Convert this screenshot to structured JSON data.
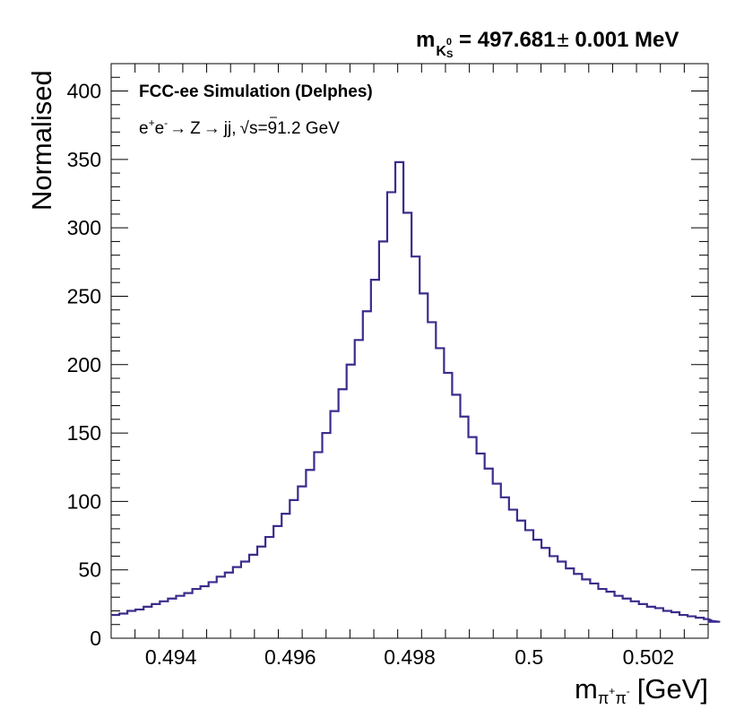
{
  "chart_data": {
    "type": "histogram",
    "title": {
      "mass_symbol": "m",
      "particle": "K",
      "particle_sup": "0",
      "particle_sub": "S",
      "value_text": " = 497.681",
      "pm": "±",
      "error_text": " 0.001 MeV"
    },
    "experiment_label": "FCC-ee Simulation (Delphes)",
    "process_label": {
      "e1": "e",
      "e1_sup": "+",
      "e2": "e",
      "e2_sup": "-",
      "arrow1": "→",
      "z": "Z",
      "arrow2": "→",
      "jets": "jj,",
      "sqrt": "√",
      "s": "s",
      "energy": "=91.2 GeV"
    },
    "xlabel": {
      "main": "m",
      "sub_pi1": "π",
      "sup1": "+",
      "sub_pi2": "π",
      "sup2": "-",
      "unit": "[GeV]"
    },
    "ylabel": "Normalised",
    "xlim": [
      0.493,
      0.503
    ],
    "ylim": [
      0,
      420
    ],
    "x_ticks": [
      0.494,
      0.496,
      0.498,
      0.5,
      0.502
    ],
    "x_tick_labels": [
      "0.494",
      "0.496",
      "0.498",
      "0.5",
      "0.502"
    ],
    "y_ticks": [
      0,
      50,
      100,
      150,
      200,
      250,
      300,
      350,
      400
    ],
    "y_tick_labels": [
      "0",
      "50",
      "100",
      "150",
      "200",
      "250",
      "300",
      "350",
      "400"
    ],
    "bin_width": 0.000136,
    "bin_edges_start": 0.493,
    "values": [
      17,
      18,
      20,
      21,
      23,
      25,
      27,
      29,
      31,
      33,
      36,
      38,
      41,
      45,
      48,
      52,
      56,
      61,
      67,
      74,
      82,
      91,
      101,
      111,
      123,
      136,
      150,
      166,
      182,
      200,
      218,
      239,
      262,
      290,
      326,
      348,
      311,
      279,
      252,
      231,
      212,
      194,
      178,
      162,
      147,
      135,
      124,
      113,
      103,
      94,
      86,
      79,
      72,
      66,
      60,
      56,
      51,
      47,
      43,
      40,
      36,
      34,
      31,
      29,
      27,
      25,
      23,
      22,
      20,
      19,
      17,
      16,
      15,
      14,
      13,
      12
    ],
    "line_color": "#3a2c8c"
  }
}
